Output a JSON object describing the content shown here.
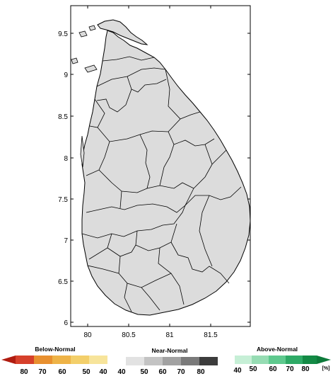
{
  "map": {
    "y_ticks": [
      "9.5",
      "9",
      "8.5",
      "8",
      "7.5",
      "7",
      "6.5",
      "6"
    ],
    "x_ticks": [
      "80",
      "80.5",
      "81",
      "81.5"
    ],
    "land_color": "#dcdcdc",
    "border_color": "#000000"
  },
  "legend": {
    "below": {
      "title": "Below-Normal",
      "labels": [
        "80",
        "70",
        "60",
        "50",
        "40"
      ],
      "colors": [
        "#d6402b",
        "#e8902f",
        "#eeb347",
        "#f3cf6a",
        "#f7e49b"
      ]
    },
    "near": {
      "title": "Near-Normal",
      "labels": [
        "40",
        "50",
        "60",
        "70",
        "80"
      ],
      "colors": [
        "#e2e2e2",
        "#c3c3c3",
        "#a2a2a2",
        "#7a7a7a",
        "#3c3c3c"
      ]
    },
    "above": {
      "title": "Above-Normal",
      "labels": [
        "40",
        "50",
        "60",
        "70",
        "80"
      ],
      "colors": [
        "#c6efd6",
        "#96dcb3",
        "#5ec98e",
        "#2eaa66",
        "#138a45"
      ],
      "unit": "[%]"
    }
  }
}
